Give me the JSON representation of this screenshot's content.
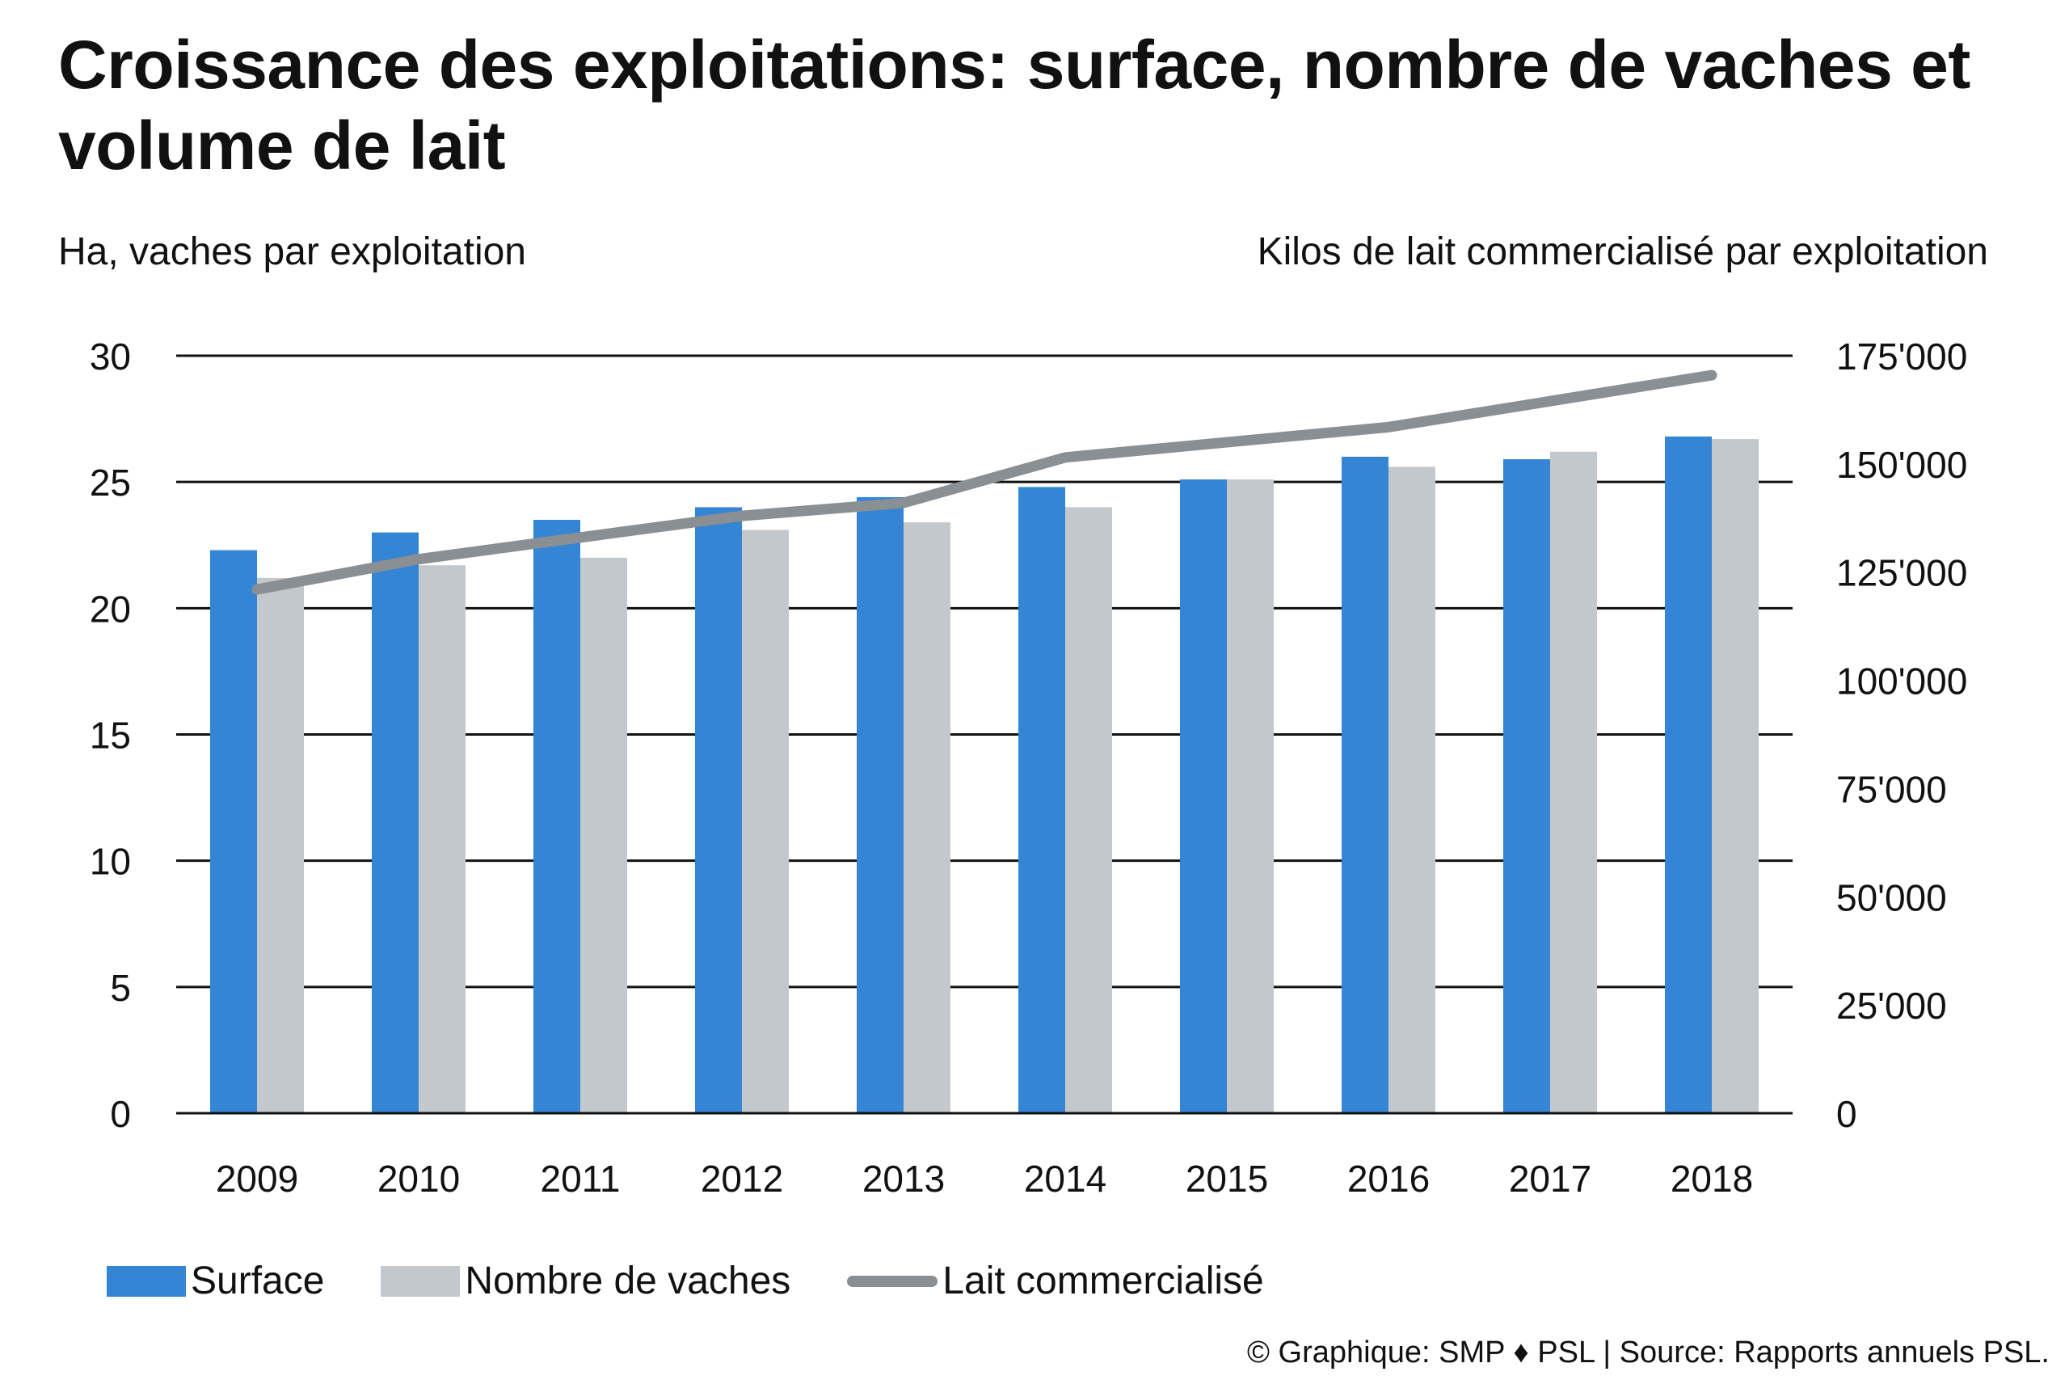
{
  "title": "Croissance des exploitations: surface, nombre de vaches et volume de lait",
  "left_axis_caption": "Ha, vaches par exploitation",
  "right_axis_caption": "Kilos de lait commercialisé par exploitation",
  "credit": "© Graphique: SMP ♦ PSL | Source: Rapports annuels PSL.",
  "colors": {
    "surface": "#3585d5",
    "vaches": "#c3c8cc",
    "lait": "#8a8f93",
    "gridline": "#111111"
  },
  "chart_data": {
    "type": "bar",
    "title": "Croissance des exploitations: surface, nombre de vaches et volume de lait",
    "categories": [
      "2009",
      "2010",
      "2011",
      "2012",
      "2013",
      "2014",
      "2015",
      "2016",
      "2017",
      "2018"
    ],
    "series": [
      {
        "name": "Surface",
        "type": "bar",
        "axis": "left",
        "values": [
          22.3,
          23.0,
          23.5,
          24.0,
          24.4,
          24.8,
          25.1,
          26.0,
          25.9,
          26.8
        ]
      },
      {
        "name": "Nombre de vaches",
        "type": "bar",
        "axis": "left",
        "values": [
          21.2,
          21.7,
          22.0,
          23.1,
          23.4,
          24.0,
          25.1,
          25.6,
          26.2,
          26.7
        ]
      },
      {
        "name": "Lait commercialisé",
        "type": "line",
        "axis": "right",
        "values": [
          121000,
          128000,
          133000,
          138000,
          141000,
          151500,
          155000,
          158500,
          164500,
          170500
        ]
      }
    ],
    "left_axis": {
      "label": "Ha, vaches par exploitation",
      "ylim": [
        0,
        30
      ],
      "ticks": [
        0,
        5,
        10,
        15,
        20,
        25,
        30
      ],
      "tick_labels": [
        "0",
        "5",
        "10",
        "15",
        "20",
        "25",
        "30"
      ]
    },
    "right_axis": {
      "label": "Kilos de lait commercialisé par exploitation",
      "ylim": [
        0,
        175000
      ],
      "ticks": [
        0,
        25000,
        50000,
        75000,
        100000,
        125000,
        150000,
        175000
      ],
      "tick_labels": [
        "0",
        "25'000",
        "50'000",
        "75'000",
        "100'000",
        "125'000",
        "150'000",
        "175'000"
      ]
    },
    "grid": true,
    "legend": {
      "position": "bottom-left",
      "entries": [
        "Surface",
        "Nombre de vaches",
        "Lait commercialisé"
      ]
    }
  }
}
